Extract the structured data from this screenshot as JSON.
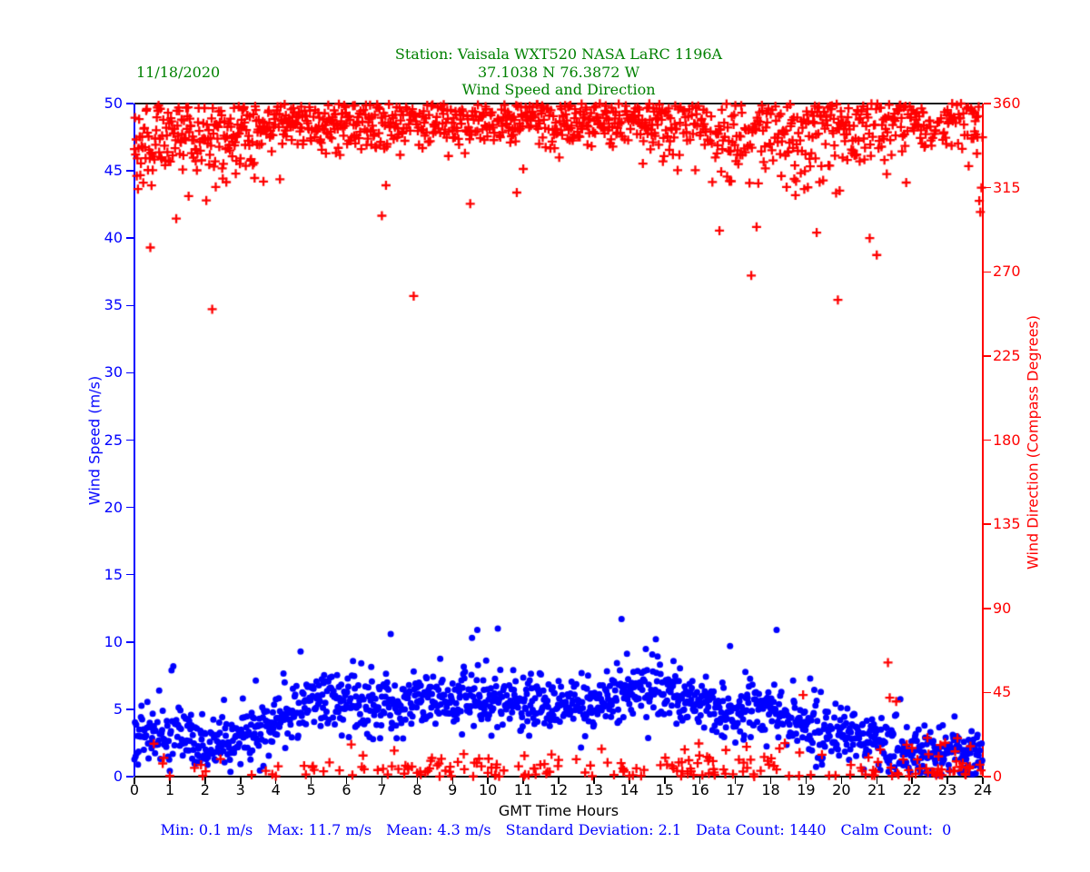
{
  "chart_data": {
    "type": "scatter",
    "title_lines": [
      "Station:  Vaisala WXT520  NASA LaRC 1196A",
      "37.1038 N 76.3872 W",
      "Wind Speed and Direction"
    ],
    "date_label": "11/18/2020",
    "title_color": "#008000",
    "background": "#ffffff",
    "x": {
      "label": "GMT Time Hours",
      "range": [
        0,
        24
      ],
      "ticks": [
        0,
        1,
        2,
        3,
        4,
        5,
        6,
        7,
        8,
        9,
        10,
        11,
        12,
        13,
        14,
        15,
        16,
        17,
        18,
        19,
        20,
        21,
        22,
        23,
        24
      ],
      "color": "#000000"
    },
    "y_left": {
      "label": "Wind Speed (m/s)",
      "range": [
        0,
        50
      ],
      "ticks": [
        0,
        5,
        10,
        15,
        20,
        25,
        30,
        35,
        40,
        45,
        50
      ],
      "color": "#0000ff"
    },
    "y_right": {
      "label": "Wind Direction (Compass Degrees)",
      "range": [
        0,
        360
      ],
      "ticks": [
        0,
        45,
        90,
        135,
        180,
        225,
        270,
        315,
        360
      ],
      "color": "#ff0000"
    },
    "grid": false,
    "legend": "none",
    "seed": 1118,
    "series": [
      {
        "name": "wind-speed",
        "marker": "circle",
        "color": "#0000ff",
        "count": 1440,
        "units": "m/s",
        "hourly_mean": [
          2.8,
          3.2,
          2.6,
          3.0,
          3.8,
          5.8,
          5.6,
          5.2,
          5.8,
          5.4,
          6.2,
          5.6,
          5.2,
          5.4,
          6.6,
          6.2,
          5.4,
          4.8,
          5.2,
          3.8,
          3.2,
          2.8,
          1.6,
          1.8,
          1.6
        ],
        "jitter_sd": 1.1,
        "spikes": [
          [
            1.05,
            7.9
          ],
          [
            1.1,
            8.2
          ],
          [
            4.7,
            9.3
          ],
          [
            7.25,
            10.6
          ],
          [
            9.55,
            10.3
          ],
          [
            10.28,
            11.0
          ],
          [
            13.78,
            11.7
          ],
          [
            14.75,
            10.2
          ],
          [
            16.85,
            9.7
          ],
          [
            22.7,
            0.1
          ]
        ]
      },
      {
        "name": "wind-direction",
        "marker": "plus",
        "color": "#ff0000",
        "count": 1440,
        "units": "Compass Degrees",
        "wrap": 360,
        "hourly_mean": [
          342,
          344,
          341,
          344,
          348,
          351,
          350,
          350,
          352,
          352,
          353,
          352,
          352,
          351,
          352,
          350,
          348,
          345,
          347,
          344,
          347,
          351,
          354,
          355,
          350
        ],
        "hourly_sd": [
          15,
          13,
          12,
          10,
          9,
          8,
          8,
          8,
          9,
          9,
          8,
          8,
          9,
          9,
          8,
          9,
          12,
          15,
          13,
          15,
          13,
          12,
          10,
          10,
          14
        ],
        "outliers": [
          [
            0.45,
            283
          ],
          [
            2.2,
            250
          ],
          [
            7.0,
            300
          ],
          [
            16.55,
            292
          ],
          [
            17.45,
            268
          ],
          [
            17.6,
            294
          ],
          [
            19.3,
            291
          ],
          [
            19.9,
            255
          ],
          [
            20.8,
            288
          ],
          [
            21.0,
            279
          ],
          [
            23.9,
            308
          ],
          [
            23.93,
            302
          ],
          [
            23.96,
            315
          ],
          [
            23.98,
            330
          ],
          [
            23.99,
            342
          ]
        ]
      }
    ],
    "stats_segments": [
      "Min: 0.1 m/s",
      "Max: 11.7 m/s",
      "Mean: 4.3 m/s",
      "Standard Deviation: 2.1",
      "Data Count: 1440",
      "Calm Count:  0"
    ],
    "stats_color": "#0000ff"
  }
}
